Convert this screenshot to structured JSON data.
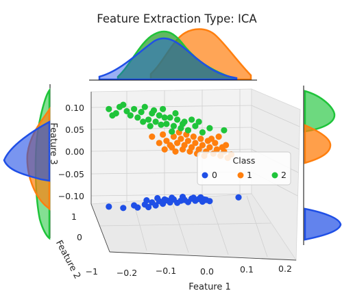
{
  "chart_data": {
    "type": "scatter",
    "title": "Feature Extraction Type: ICA",
    "xlabel": "Feature 1",
    "ylabel": "Feature 2",
    "zlabel": "Feature 3",
    "xticks": [
      "−0.2",
      "−0.1",
      "0.0",
      "0.1",
      "0.2"
    ],
    "yticks": [
      "1",
      "0",
      "−1"
    ],
    "zticks": [
      "0.10",
      "0.05",
      "0.00",
      "−0.05",
      "−0.10"
    ],
    "xlim": [
      -0.25,
      0.22
    ],
    "zlim": [
      -0.12,
      0.13
    ],
    "grid": true,
    "legend": {
      "title": "Class",
      "position": "right",
      "labels": [
        "0",
        "1",
        "2"
      ]
    },
    "colors": {
      "0": "#1f4fe6",
      "1": "#ff7f0e",
      "2": "#1fc43a"
    },
    "series": [
      {
        "name": "0",
        "points": [
          [
            -0.22,
            -0.115
          ],
          [
            -0.18,
            -0.118
          ],
          [
            -0.15,
            -0.112
          ],
          [
            -0.14,
            -0.117
          ],
          [
            -0.12,
            -0.11
          ],
          [
            -0.11,
            -0.116
          ],
          [
            -0.1,
            -0.105
          ],
          [
            -0.09,
            -0.112
          ],
          [
            -0.08,
            -0.102
          ],
          [
            -0.07,
            -0.108
          ],
          [
            -0.06,
            -0.1
          ],
          [
            -0.05,
            -0.105
          ],
          [
            -0.04,
            -0.098
          ],
          [
            -0.03,
            -0.106
          ],
          [
            -0.02,
            -0.101
          ],
          [
            -0.01,
            -0.099
          ],
          [
            0.0,
            -0.104
          ],
          [
            0.01,
            -0.096
          ],
          [
            0.02,
            -0.101
          ],
          [
            0.03,
            -0.097
          ],
          [
            0.04,
            -0.103
          ],
          [
            0.05,
            -0.099
          ],
          [
            0.06,
            -0.102
          ],
          [
            -0.085,
            -0.095
          ],
          [
            -0.045,
            -0.094
          ],
          [
            -0.015,
            -0.092
          ],
          [
            0.015,
            -0.094
          ],
          [
            0.035,
            -0.093
          ],
          [
            -0.115,
            -0.1
          ],
          [
            -0.065,
            -0.098
          ],
          [
            0.045,
            -0.098
          ],
          [
            0.14,
            -0.093
          ]
        ]
      },
      {
        "name": "1",
        "points": [
          [
            -0.1,
            0.05
          ],
          [
            -0.08,
            0.035
          ],
          [
            -0.07,
            0.055
          ],
          [
            -0.06,
            0.04
          ],
          [
            -0.05,
            0.03
          ],
          [
            -0.04,
            0.05
          ],
          [
            -0.03,
            0.035
          ],
          [
            -0.02,
            0.045
          ],
          [
            -0.01,
            0.03
          ],
          [
            0.0,
            0.04
          ],
          [
            0.01,
            0.025
          ],
          [
            0.02,
            0.035
          ],
          [
            0.03,
            0.02
          ],
          [
            0.04,
            0.03
          ],
          [
            0.05,
            0.015
          ],
          [
            0.06,
            0.025
          ],
          [
            0.07,
            0.01
          ],
          [
            0.08,
            0.02
          ],
          [
            0.09,
            0.005
          ],
          [
            0.1,
            0.015
          ],
          [
            0.11,
            0.0
          ],
          [
            0.12,
            0.008
          ],
          [
            -0.025,
            0.06
          ],
          [
            -0.005,
            0.055
          ],
          [
            0.015,
            0.05
          ],
          [
            0.035,
            0.045
          ],
          [
            -0.045,
            0.025
          ],
          [
            -0.015,
            0.02
          ],
          [
            0.005,
            0.015
          ],
          [
            0.025,
            0.01
          ],
          [
            0.055,
            0.04
          ],
          [
            0.075,
            0.035
          ],
          [
            -0.065,
            0.02
          ],
          [
            0.045,
            0.005
          ],
          [
            0.095,
            0.025
          ],
          [
            0.0,
            0.065
          ],
          [
            -0.035,
            0.015
          ],
          [
            0.065,
            0.045
          ],
          [
            0.105,
            0.03
          ],
          [
            0.085,
            0.05
          ]
        ]
      },
      {
        "name": "2",
        "points": [
          [
            -0.22,
            0.115
          ],
          [
            -0.2,
            0.105
          ],
          [
            -0.19,
            0.12
          ],
          [
            -0.17,
            0.11
          ],
          [
            -0.16,
            0.1
          ],
          [
            -0.15,
            0.115
          ],
          [
            -0.14,
            0.095
          ],
          [
            -0.13,
            0.108
          ],
          [
            -0.12,
            0.12
          ],
          [
            -0.11,
            0.09
          ],
          [
            -0.1,
            0.105
          ],
          [
            -0.09,
            0.085
          ],
          [
            -0.08,
            0.1
          ],
          [
            -0.07,
            0.115
          ],
          [
            -0.06,
            0.08
          ],
          [
            -0.05,
            0.095
          ],
          [
            -0.04,
            0.075
          ],
          [
            -0.03,
            0.09
          ],
          [
            -0.02,
            0.07
          ],
          [
            -0.01,
            0.085
          ],
          [
            0.0,
            0.065
          ],
          [
            0.02,
            0.075
          ],
          [
            0.04,
            0.06
          ],
          [
            0.06,
            0.07
          ],
          [
            0.1,
            0.065
          ],
          [
            -0.21,
            0.1
          ],
          [
            -0.18,
            0.125
          ],
          [
            -0.125,
            0.085
          ],
          [
            -0.095,
            0.112
          ],
          [
            -0.065,
            0.095
          ],
          [
            -0.035,
            0.105
          ],
          [
            -0.015,
            0.08
          ],
          [
            0.01,
            0.09
          ],
          [
            0.03,
            0.085
          ],
          [
            -0.105,
            0.075
          ],
          [
            -0.075,
            0.078
          ],
          [
            -0.045,
            0.062
          ]
        ]
      }
    ]
  }
}
